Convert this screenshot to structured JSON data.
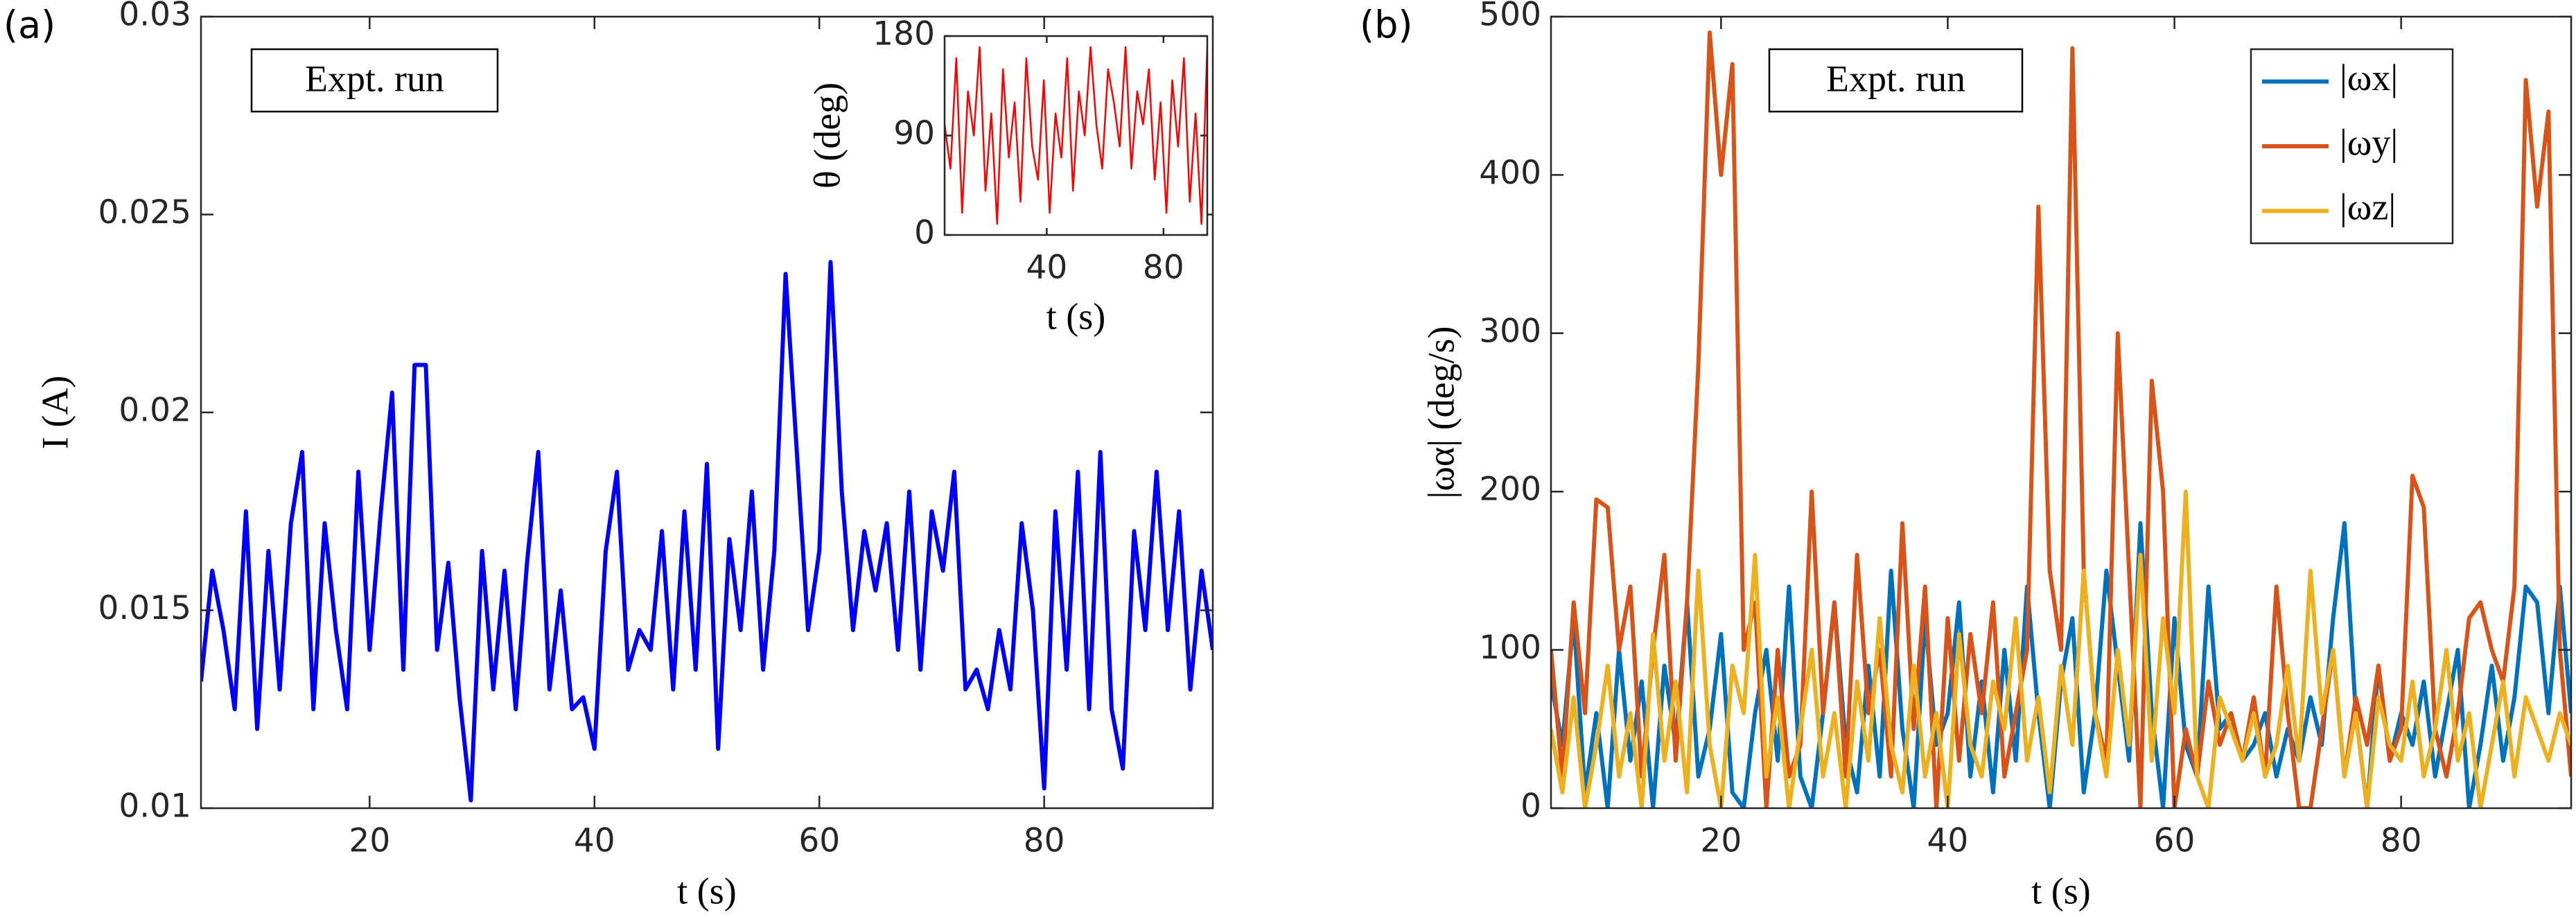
{
  "chart_data": [
    {
      "type": "line",
      "panel_label": "(a)",
      "annotation": "Expt. run",
      "xlabel": "t (s)",
      "ylabel": "I (A)",
      "x": [
        5,
        6,
        7,
        8,
        9,
        10,
        11,
        12,
        13,
        14,
        15,
        16,
        17,
        18,
        19,
        20,
        21,
        22,
        23,
        24,
        25,
        26,
        27,
        28,
        29,
        30,
        31,
        32,
        33,
        34,
        35,
        36,
        37,
        38,
        39,
        40,
        41,
        42,
        43,
        44,
        45,
        46,
        47,
        48,
        49,
        50,
        51,
        52,
        53,
        54,
        55,
        56,
        57,
        58,
        59,
        60,
        61,
        62,
        63,
        64,
        65,
        66,
        67,
        68,
        69,
        70,
        71,
        72,
        73,
        74,
        75,
        76,
        77,
        78,
        79,
        80,
        81,
        82,
        83,
        84,
        85,
        86,
        87,
        88,
        89,
        90,
        91,
        92,
        93,
        94,
        95
      ],
      "series": [
        {
          "color": "#0000ff",
          "values": [
            0.0132,
            0.016,
            0.0145,
            0.0125,
            0.0175,
            0.012,
            0.0165,
            0.013,
            0.0172,
            0.019,
            0.0125,
            0.0172,
            0.0145,
            0.0125,
            0.0185,
            0.014,
            0.0175,
            0.0205,
            0.0135,
            0.0212,
            0.0212,
            0.014,
            0.0162,
            0.0128,
            0.0102,
            0.0165,
            0.013,
            0.016,
            0.0125,
            0.0162,
            0.019,
            0.013,
            0.0155,
            0.0125,
            0.0128,
            0.0115,
            0.0165,
            0.0185,
            0.0135,
            0.0145,
            0.014,
            0.017,
            0.013,
            0.0175,
            0.0135,
            0.0187,
            0.0115,
            0.0168,
            0.0145,
            0.018,
            0.0135,
            0.0165,
            0.0235,
            0.019,
            0.0145,
            0.0165,
            0.0238,
            0.018,
            0.0145,
            0.017,
            0.0155,
            0.0172,
            0.014,
            0.018,
            0.0135,
            0.0175,
            0.016,
            0.0185,
            0.013,
            0.0135,
            0.0125,
            0.0145,
            0.013,
            0.0172,
            0.015,
            0.0105,
            0.0175,
            0.0135,
            0.0185,
            0.0125,
            0.019,
            0.0125,
            0.011,
            0.017,
            0.0145,
            0.0185,
            0.0145,
            0.0175,
            0.013,
            0.016,
            0.014
          ]
        }
      ],
      "xlim": [
        5,
        95
      ],
      "xticks": [
        20,
        40,
        60,
        80
      ],
      "ylim": [
        0.01,
        0.03
      ],
      "yticks": [
        0.01,
        0.015,
        0.02,
        0.025,
        0.03
      ]
    },
    {
      "type": "line",
      "xlabel": "t (s)",
      "ylabel": "θ (deg)",
      "x": [
        5,
        7,
        9,
        11,
        13,
        15,
        17,
        19,
        21,
        23,
        25,
        27,
        29,
        31,
        33,
        35,
        37,
        39,
        41,
        43,
        45,
        47,
        49,
        51,
        53,
        55,
        57,
        59,
        61,
        63,
        65,
        67,
        69,
        71,
        73,
        75,
        77,
        79,
        81,
        83,
        85,
        87,
        89,
        91,
        93,
        95
      ],
      "series": [
        {
          "color": "#ff0000",
          "values": [
            100,
            60,
            160,
            20,
            130,
            90,
            170,
            40,
            110,
            10,
            150,
            70,
            120,
            30,
            160,
            80,
            50,
            140,
            20,
            110,
            70,
            160,
            40,
            130,
            90,
            170,
            100,
            60,
            150,
            120,
            80,
            170,
            60,
            130,
            100,
            150,
            50,
            120,
            20,
            140,
            80,
            160,
            30,
            110,
            10,
            170
          ]
        }
      ],
      "xlim": [
        5,
        95
      ],
      "xticks": [
        40,
        80
      ],
      "ylim": [
        0,
        180
      ],
      "yticks": [
        0,
        90,
        180
      ]
    },
    {
      "type": "line",
      "panel_label": "(b)",
      "annotation": "Expt. run",
      "xlabel": "t (s)",
      "ylabel": "|ωα| (deg/s)",
      "x": [
        5,
        6,
        7,
        8,
        9,
        10,
        11,
        12,
        13,
        14,
        15,
        16,
        17,
        18,
        19,
        20,
        21,
        22,
        23,
        24,
        25,
        26,
        27,
        28,
        29,
        30,
        31,
        32,
        33,
        34,
        35,
        36,
        37,
        38,
        39,
        40,
        41,
        42,
        43,
        44,
        45,
        46,
        47,
        48,
        49,
        50,
        51,
        52,
        53,
        54,
        55,
        56,
        57,
        58,
        59,
        60,
        61,
        62,
        63,
        64,
        65,
        66,
        67,
        68,
        69,
        70,
        71,
        72,
        73,
        74,
        75,
        76,
        77,
        78,
        79,
        80,
        81,
        82,
        83,
        84,
        85,
        86,
        87,
        88,
        89,
        90,
        91,
        92,
        93,
        94,
        95
      ],
      "series": [
        {
          "name": "|ωx|",
          "color": "#0072bd",
          "values": [
            80,
            40,
            120,
            10,
            60,
            0,
            100,
            30,
            80,
            0,
            90,
            40,
            130,
            20,
            50,
            110,
            10,
            0,
            60,
            100,
            30,
            140,
            20,
            0,
            60,
            130,
            40,
            10,
            90,
            20,
            150,
            50,
            0,
            120,
            40,
            60,
            130,
            20,
            80,
            10,
            100,
            30,
            140,
            60,
            0,
            80,
            120,
            10,
            60,
            150,
            90,
            30,
            180,
            60,
            0,
            120,
            40,
            20,
            140,
            50,
            60,
            30,
            40,
            60,
            20,
            50,
            30,
            70,
            40,
            120,
            180,
            60,
            0,
            90,
            30,
            60,
            40,
            80,
            20,
            60,
            100,
            0,
            40,
            90,
            30,
            70,
            140,
            130,
            60,
            140,
            60
          ]
        },
        {
          "name": "|ωy|",
          "color": "#d95319",
          "values": [
            100,
            20,
            130,
            60,
            195,
            190,
            100,
            140,
            20,
            100,
            160,
            30,
            130,
            280,
            490,
            400,
            470,
            100,
            130,
            0,
            100,
            20,
            40,
            200,
            60,
            130,
            20,
            160,
            60,
            100,
            20,
            180,
            50,
            140,
            0,
            120,
            30,
            110,
            60,
            130,
            20,
            60,
            100,
            380,
            150,
            100,
            480,
            150,
            60,
            30,
            300,
            150,
            0,
            270,
            200,
            0,
            50,
            20,
            80,
            40,
            60,
            30,
            70,
            20,
            140,
            60,
            0,
            0,
            50,
            100,
            20,
            70,
            40,
            90,
            30,
            50,
            210,
            190,
            50,
            20,
            60,
            120,
            130,
            100,
            80,
            140,
            460,
            380,
            440,
            100,
            20
          ]
        },
        {
          "name": "|ωz|",
          "color": "#edb120",
          "values": [
            50,
            10,
            70,
            0,
            40,
            90,
            20,
            60,
            0,
            110,
            30,
            80,
            10,
            150,
            40,
            0,
            90,
            60,
            160,
            20,
            70,
            0,
            50,
            100,
            20,
            60,
            0,
            80,
            30,
            120,
            40,
            10,
            90,
            20,
            60,
            0,
            110,
            40,
            20,
            80,
            50,
            120,
            30,
            70,
            10,
            90,
            40,
            150,
            60,
            20,
            100,
            40,
            160,
            30,
            120,
            60,
            200,
            20,
            0,
            70,
            50,
            30,
            60,
            20,
            40,
            90,
            30,
            150,
            60,
            100,
            20,
            60,
            0,
            70,
            40,
            30,
            80,
            20,
            50,
            100,
            30,
            60,
            0,
            40,
            80,
            20,
            70,
            50,
            30,
            60,
            40
          ]
        }
      ],
      "xlim": [
        5,
        95
      ],
      "xticks": [
        20,
        40,
        60,
        80
      ],
      "ylim": [
        0,
        500
      ],
      "yticks": [
        0,
        100,
        200,
        300,
        400,
        500
      ]
    }
  ]
}
